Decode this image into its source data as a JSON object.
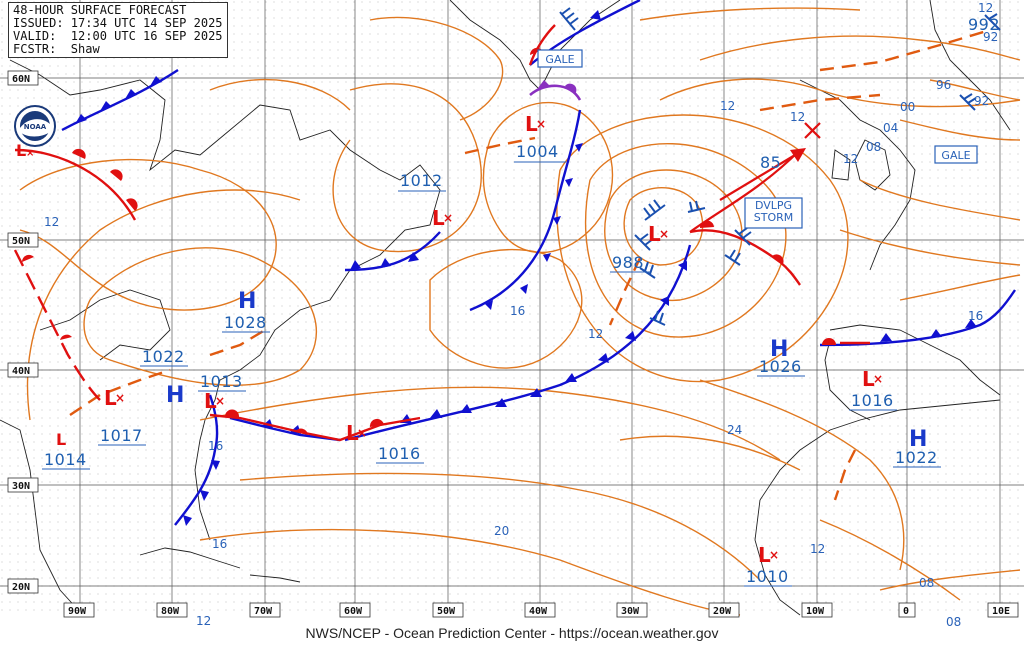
{
  "header": {
    "line1": "48-HOUR SURFACE FORECAST",
    "line2": "ISSUED: 17:34 UTC 14 SEP 2025",
    "line3": "VALID:  12:00 UTC 16 SEP 2025",
    "line4": "FCSTR:  Shaw"
  },
  "footer": "NWS/NCEP - Ocean Prediction Center - https://ocean.weather.gov",
  "latitude_labels": [
    "60N",
    "50N",
    "40N",
    "30N",
    "20N"
  ],
  "longitude_labels": [
    "90W",
    "80W",
    "70W",
    "60W",
    "50W",
    "40W",
    "30W",
    "20W",
    "10W",
    "0",
    "10E"
  ],
  "pressure_systems": [
    {
      "type": "L",
      "value": "1004"
    },
    {
      "type": "L",
      "value": "1012"
    },
    {
      "type": "L",
      "value": "988"
    },
    {
      "type": "L",
      "value": "1013"
    },
    {
      "type": "L",
      "value": "1017"
    },
    {
      "type": "L",
      "value": "1014"
    },
    {
      "type": "L",
      "value": "1016"
    },
    {
      "type": "L",
      "value": "1016"
    },
    {
      "type": "L",
      "value": "1010"
    },
    {
      "type": "H",
      "value": "1028"
    },
    {
      "type": "H",
      "value": "1022"
    },
    {
      "type": "H",
      "value": "1026"
    },
    {
      "type": "H",
      "value": "1022"
    },
    {
      "type": "L",
      "value": "992"
    }
  ],
  "isobar_labels": [
    "12",
    "12",
    "16",
    "16",
    "16",
    "12",
    "12",
    "20",
    "24",
    "12",
    "12",
    "08",
    "04",
    "00",
    "96",
    "92",
    "92",
    "12",
    "08",
    "08",
    "12",
    "16"
  ],
  "warnings": [
    "GALE",
    "DVLPG STORM",
    "GALE"
  ],
  "motion_speed": "85",
  "colors": {
    "isobar": "#e07820",
    "cold": "#1010d0",
    "warm": "#e01010",
    "occluded": "#8a30c0",
    "label": "#1f5fb0",
    "grid": "#444444"
  },
  "icons": [
    "noaa-logo",
    "low-symbol",
    "high-symbol",
    "wind-barb",
    "storm-motion-arrow"
  ]
}
